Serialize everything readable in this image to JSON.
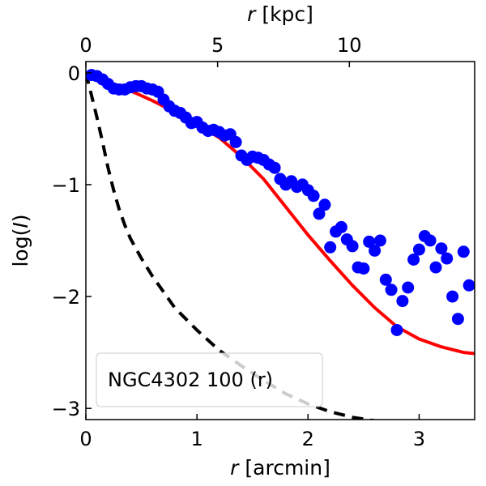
{
  "chart_data": {
    "type": "scatter",
    "xlabel_italic": "r",
    "xlabel_unit": "[arcmin]",
    "top_xlabel_italic": "r",
    "top_xlabel_unit": "[kpc]",
    "ylabel_prefix": "log(",
    "ylabel_italic": "I",
    "ylabel_suffix": ")",
    "xlim": [
      0,
      3.5
    ],
    "ylim": [
      -3.1,
      0.1
    ],
    "x_ticks": [
      0,
      1,
      2,
      3
    ],
    "x_tick_labels": [
      "0",
      "1",
      "2",
      "3"
    ],
    "y_ticks": [
      0,
      -1,
      -2,
      -3
    ],
    "y_tick_labels": [
      "0",
      "−1",
      "−2",
      "−3"
    ],
    "top_ticks_arcmin": [
      0,
      1.186,
      2.372
    ],
    "top_tick_labels": [
      "0",
      "5",
      "10"
    ],
    "legend": {
      "label": "NGC4302 100 (r)",
      "location": "lower-left"
    },
    "series": [
      {
        "name": "observed",
        "kind": "scatter",
        "color": "#0000ff",
        "x": [
          0.05,
          0.1,
          0.15,
          0.2,
          0.25,
          0.3,
          0.35,
          0.4,
          0.45,
          0.5,
          0.55,
          0.6,
          0.65,
          0.7,
          0.75,
          0.8,
          0.85,
          0.9,
          0.95,
          1.0,
          1.05,
          1.1,
          1.15,
          1.2,
          1.25,
          1.3,
          1.35,
          1.4,
          1.45,
          1.5,
          1.55,
          1.6,
          1.65,
          1.7,
          1.75,
          1.8,
          1.85,
          1.9,
          1.95,
          2.0,
          2.05,
          2.1,
          2.15,
          2.2,
          2.25,
          2.3,
          2.35,
          2.4,
          2.45,
          2.5,
          2.55,
          2.6,
          2.65,
          2.7,
          2.75,
          2.8,
          2.85,
          2.9,
          2.95,
          3.0,
          3.05,
          3.1,
          3.15,
          3.2,
          3.25,
          3.3,
          3.35,
          3.4,
          3.45
        ],
        "y": [
          -0.02,
          -0.03,
          -0.06,
          -0.1,
          -0.14,
          -0.15,
          -0.15,
          -0.13,
          -0.12,
          -0.12,
          -0.14,
          -0.15,
          -0.17,
          -0.24,
          -0.3,
          -0.34,
          -0.36,
          -0.4,
          -0.45,
          -0.44,
          -0.49,
          -0.52,
          -0.51,
          -0.53,
          -0.56,
          -0.55,
          -0.62,
          -0.74,
          -0.78,
          -0.75,
          -0.76,
          -0.78,
          -0.82,
          -0.85,
          -0.95,
          -1.0,
          -0.97,
          -1.02,
          -1.0,
          -1.05,
          -1.1,
          -1.26,
          -1.18,
          -1.56,
          -1.42,
          -1.38,
          -1.49,
          -1.55,
          -1.74,
          -1.75,
          -1.51,
          -1.59,
          -1.5,
          -1.85,
          -1.94,
          -2.3,
          -2.04,
          -1.92,
          -1.67,
          -1.58,
          -1.46,
          -1.5,
          -1.74,
          -1.57,
          -1.66,
          -2.0,
          -2.2,
          -1.6,
          -1.9
        ]
      },
      {
        "name": "model",
        "kind": "line",
        "color": "#ff0000",
        "x": [
          0,
          0.2,
          0.4,
          0.6,
          0.8,
          1.0,
          1.2,
          1.4,
          1.6,
          1.8,
          2.0,
          2.2,
          2.4,
          2.6,
          2.8,
          3.0,
          3.2,
          3.4,
          3.5
        ],
        "y": [
          -0.04,
          -0.08,
          -0.16,
          -0.25,
          -0.35,
          -0.46,
          -0.58,
          -0.75,
          -0.95,
          -1.2,
          -1.45,
          -1.68,
          -1.9,
          -2.1,
          -2.27,
          -2.38,
          -2.45,
          -2.5,
          -2.51
        ]
      },
      {
        "name": "psf",
        "kind": "dashed-line",
        "color": "#000000",
        "x": [
          0,
          0.05,
          0.1,
          0.15,
          0.2,
          0.25,
          0.3,
          0.35,
          0.4,
          0.5,
          0.6,
          0.7,
          0.8,
          0.9,
          1.0,
          1.2,
          1.4,
          1.6,
          1.8,
          2.0,
          2.2,
          2.4,
          2.6
        ],
        "y": [
          0,
          -0.2,
          -0.4,
          -0.62,
          -0.85,
          -1.05,
          -1.22,
          -1.36,
          -1.48,
          -1.66,
          -1.82,
          -1.96,
          -2.1,
          -2.2,
          -2.3,
          -2.48,
          -2.62,
          -2.75,
          -2.87,
          -2.96,
          -3.03,
          -3.08,
          -3.11
        ]
      }
    ]
  }
}
